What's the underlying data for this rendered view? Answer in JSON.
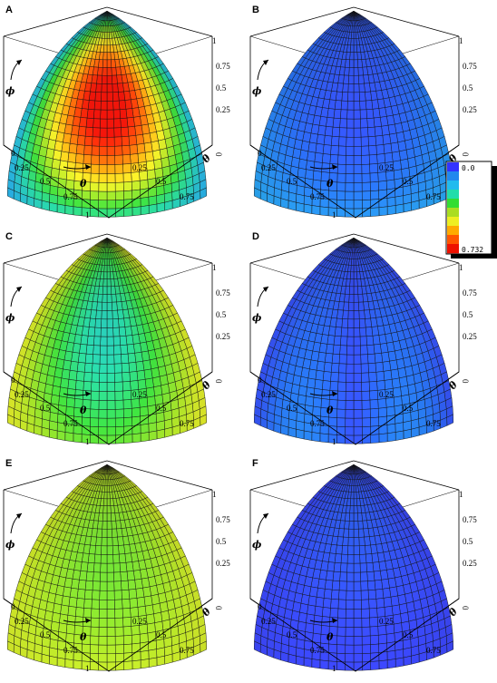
{
  "chart_data": [
    {
      "type": "heatmap",
      "panel": "A",
      "mean_level": 0.52,
      "range": [
        0.0,
        0.732
      ]
    },
    {
      "type": "heatmap",
      "panel": "B",
      "mean_level": 0.08,
      "range": [
        0.0,
        0.732
      ]
    },
    {
      "type": "heatmap",
      "panel": "C",
      "mean_level": 0.38,
      "range": [
        0.0,
        0.732
      ]
    },
    {
      "type": "heatmap",
      "panel": "D",
      "mean_level": 0.06,
      "range": [
        0.0,
        0.732
      ]
    },
    {
      "type": "heatmap",
      "panel": "E",
      "mean_level": 0.42,
      "range": [
        0.0,
        0.732
      ]
    },
    {
      "type": "heatmap",
      "panel": "F",
      "mean_level": 0.03,
      "range": [
        0.0,
        0.732
      ]
    }
  ],
  "panels": [
    "A",
    "B",
    "C",
    "D",
    "E",
    "F"
  ],
  "axes": {
    "phi_symbol": "ϕ",
    "theta_symbol": "θ",
    "phi_ticks": [
      "0.25",
      "0.5",
      "0.75",
      "1"
    ],
    "theta_ticks": [
      "0.25",
      "0.5",
      "0.75",
      "1"
    ],
    "zero": "0"
  },
  "colorbar": {
    "min_label": "0.0",
    "max_label": "0.732",
    "colors": [
      "#3333ff",
      "#2288ee",
      "#22bbee",
      "#22ddaa",
      "#33dd33",
      "#aadd22",
      "#eeee22",
      "#ffaa00",
      "#ff5500",
      "#ee1100"
    ]
  }
}
